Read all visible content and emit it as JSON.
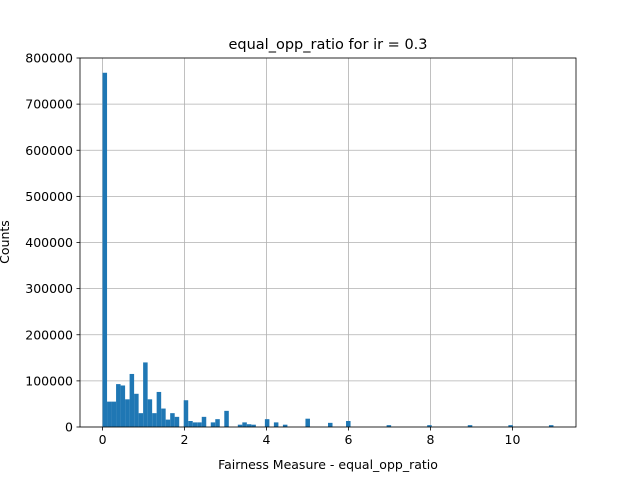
{
  "chart_data": {
    "type": "bar",
    "title": "equal_opp_ratio for ir = 0.3",
    "xlabel": "Fairness Measure - equal_opp_ratio",
    "ylabel": "Counts",
    "xlim": [
      -0.55,
      11.55
    ],
    "ylim": [
      0,
      800000
    ],
    "xticks": [
      0,
      2,
      4,
      6,
      8,
      10
    ],
    "xtick_labels": [
      "0",
      "2",
      "4",
      "6",
      "8",
      "10"
    ],
    "yticks": [
      0,
      100000,
      200000,
      300000,
      400000,
      500000,
      600000,
      700000,
      800000
    ],
    "ytick_labels": [
      "0",
      "100000",
      "200000",
      "300000",
      "400000",
      "500000",
      "600000",
      "700000",
      "800000"
    ],
    "grid": true,
    "color": "#1f77b4",
    "bin_width": 0.11,
    "bins": [
      {
        "x": 0.0,
        "value": 768000
      },
      {
        "x": 0.11,
        "value": 55000
      },
      {
        "x": 0.22,
        "value": 55000
      },
      {
        "x": 0.33,
        "value": 93000
      },
      {
        "x": 0.44,
        "value": 90000
      },
      {
        "x": 0.55,
        "value": 60000
      },
      {
        "x": 0.66,
        "value": 115000
      },
      {
        "x": 0.77,
        "value": 72000
      },
      {
        "x": 0.88,
        "value": 30000
      },
      {
        "x": 0.99,
        "value": 140000
      },
      {
        "x": 1.1,
        "value": 60000
      },
      {
        "x": 1.21,
        "value": 30000
      },
      {
        "x": 1.32,
        "value": 76000
      },
      {
        "x": 1.43,
        "value": 40000
      },
      {
        "x": 1.54,
        "value": 16000
      },
      {
        "x": 1.65,
        "value": 30000
      },
      {
        "x": 1.76,
        "value": 22000
      },
      {
        "x": 1.98,
        "value": 58000
      },
      {
        "x": 2.09,
        "value": 13000
      },
      {
        "x": 2.2,
        "value": 10000
      },
      {
        "x": 2.31,
        "value": 10000
      },
      {
        "x": 2.42,
        "value": 22000
      },
      {
        "x": 2.64,
        "value": 10000
      },
      {
        "x": 2.75,
        "value": 17000
      },
      {
        "x": 2.97,
        "value": 35000
      },
      {
        "x": 3.3,
        "value": 5000
      },
      {
        "x": 3.41,
        "value": 10000
      },
      {
        "x": 3.52,
        "value": 6000
      },
      {
        "x": 3.63,
        "value": 5000
      },
      {
        "x": 3.96,
        "value": 17000
      },
      {
        "x": 4.18,
        "value": 10000
      },
      {
        "x": 4.4,
        "value": 5000
      },
      {
        "x": 4.95,
        "value": 18000
      },
      {
        "x": 5.5,
        "value": 9000
      },
      {
        "x": 5.94,
        "value": 13000
      },
      {
        "x": 6.93,
        "value": 4000
      },
      {
        "x": 7.92,
        "value": 4000
      },
      {
        "x": 8.91,
        "value": 4000
      },
      {
        "x": 9.9,
        "value": 4000
      },
      {
        "x": 10.89,
        "value": 4000
      }
    ]
  }
}
